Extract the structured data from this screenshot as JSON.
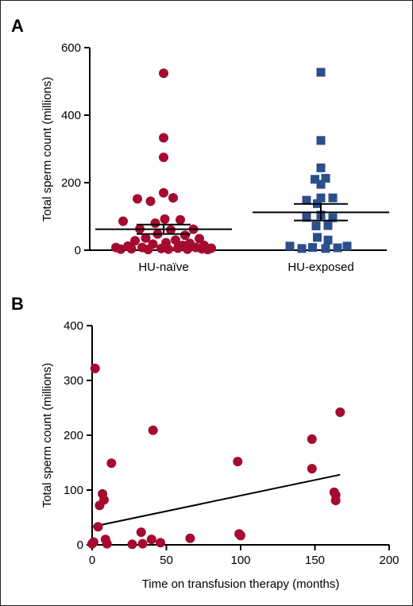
{
  "colors": {
    "hu_naive": "#a50b31",
    "hu_exposed": "#2b4e8c",
    "axis": "#000000",
    "panel_b_points": "#a50b31"
  },
  "chart_data": [
    {
      "panel": "A",
      "type": "scatter",
      "subtype": "dot-plot-with-mean-sem",
      "ylabel": "Total sperm count (millions)",
      "ylim": [
        0,
        600
      ],
      "yticks": [
        "0",
        "200",
        "400",
        "600"
      ],
      "categories": [
        "HU-naïve",
        "HU-exposed"
      ],
      "series": [
        {
          "category": "HU-naïve",
          "marker": "circle",
          "mean": 62,
          "sem_upper": 76,
          "sem_lower": 48,
          "points": [
            {
              "x": -0.4,
              "y": 8
            },
            {
              "x": -0.36,
              "y": 3
            },
            {
              "x": -0.34,
              "y": 86
            },
            {
              "x": -0.3,
              "y": 12
            },
            {
              "x": -0.27,
              "y": 4
            },
            {
              "x": -0.24,
              "y": 28
            },
            {
              "x": -0.22,
              "y": 152
            },
            {
              "x": -0.2,
              "y": 63
            },
            {
              "x": -0.18,
              "y": 8
            },
            {
              "x": -0.15,
              "y": 36
            },
            {
              "x": -0.13,
              "y": 2
            },
            {
              "x": -0.11,
              "y": 145
            },
            {
              "x": -0.09,
              "y": 18
            },
            {
              "x": -0.07,
              "y": 80
            },
            {
              "x": -0.05,
              "y": 48
            },
            {
              "x": -0.02,
              "y": 5
            },
            {
              "x": 0.0,
              "y": 524
            },
            {
              "x": 0.0,
              "y": 333
            },
            {
              "x": 0.0,
              "y": 275
            },
            {
              "x": 0.0,
              "y": 170
            },
            {
              "x": 0.01,
              "y": 92
            },
            {
              "x": 0.02,
              "y": 22
            },
            {
              "x": 0.04,
              "y": 3
            },
            {
              "x": 0.06,
              "y": 60
            },
            {
              "x": 0.08,
              "y": 155
            },
            {
              "x": 0.1,
              "y": 30
            },
            {
              "x": 0.12,
              "y": 6
            },
            {
              "x": 0.14,
              "y": 90
            },
            {
              "x": 0.16,
              "y": 14
            },
            {
              "x": 0.18,
              "y": 44
            },
            {
              "x": 0.2,
              "y": 3
            },
            {
              "x": 0.22,
              "y": 20
            },
            {
              "x": 0.25,
              "y": 62
            },
            {
              "x": 0.27,
              "y": 8
            },
            {
              "x": 0.3,
              "y": 34
            },
            {
              "x": 0.32,
              "y": 4
            },
            {
              "x": 0.34,
              "y": 14
            },
            {
              "x": 0.37,
              "y": 2
            },
            {
              "x": 0.4,
              "y": 6
            }
          ]
        },
        {
          "category": "HU-exposed",
          "marker": "square",
          "mean": 112,
          "sem_upper": 137,
          "sem_lower": 88,
          "points": [
            {
              "x": 0.0,
              "y": 527
            },
            {
              "x": 0.0,
              "y": 325
            },
            {
              "x": 0.0,
              "y": 244
            },
            {
              "x": -0.05,
              "y": 210
            },
            {
              "x": 0.04,
              "y": 213
            },
            {
              "x": 0.0,
              "y": 195
            },
            {
              "x": -0.12,
              "y": 148
            },
            {
              "x": 0.0,
              "y": 155
            },
            {
              "x": 0.1,
              "y": 155
            },
            {
              "x": -0.03,
              "y": 138
            },
            {
              "x": -0.12,
              "y": 97
            },
            {
              "x": 0.0,
              "y": 104
            },
            {
              "x": 0.1,
              "y": 96
            },
            {
              "x": -0.04,
              "y": 72
            },
            {
              "x": 0.06,
              "y": 73
            },
            {
              "x": -0.03,
              "y": 38
            },
            {
              "x": 0.06,
              "y": 30
            },
            {
              "x": -0.26,
              "y": 12
            },
            {
              "x": -0.16,
              "y": 5
            },
            {
              "x": -0.07,
              "y": 8
            },
            {
              "x": 0.04,
              "y": 5
            },
            {
              "x": 0.14,
              "y": 7
            },
            {
              "x": 0.22,
              "y": 12
            }
          ]
        }
      ]
    },
    {
      "panel": "B",
      "type": "scatter",
      "xlabel": "Time on transfusion therapy (months)",
      "ylabel": "Total sperm count (millions)",
      "xlim": [
        0,
        200
      ],
      "ylim": [
        0,
        400
      ],
      "xticks": [
        "0",
        "50",
        "100",
        "150",
        "200"
      ],
      "yticks": [
        "0",
        "100",
        "200",
        "300",
        "400"
      ],
      "points": [
        {
          "x": 0,
          "y": 2
        },
        {
          "x": 1,
          "y": 5
        },
        {
          "x": 2,
          "y": 322
        },
        {
          "x": 4,
          "y": 33
        },
        {
          "x": 5,
          "y": 72
        },
        {
          "x": 7,
          "y": 93
        },
        {
          "x": 8,
          "y": 82
        },
        {
          "x": 9,
          "y": 10
        },
        {
          "x": 10,
          "y": 2
        },
        {
          "x": 13,
          "y": 149
        },
        {
          "x": 27,
          "y": 1
        },
        {
          "x": 33,
          "y": 23
        },
        {
          "x": 34,
          "y": 2
        },
        {
          "x": 40,
          "y": 10
        },
        {
          "x": 41,
          "y": 209
        },
        {
          "x": 46,
          "y": 4
        },
        {
          "x": 66,
          "y": 12
        },
        {
          "x": 98,
          "y": 152
        },
        {
          "x": 99,
          "y": 20
        },
        {
          "x": 100,
          "y": 17
        },
        {
          "x": 148,
          "y": 193
        },
        {
          "x": 148,
          "y": 139
        },
        {
          "x": 163,
          "y": 96
        },
        {
          "x": 164,
          "y": 91
        },
        {
          "x": 164,
          "y": 81
        },
        {
          "x": 167,
          "y": 242
        }
      ],
      "trendline": {
        "x": [
          0,
          167
        ],
        "y": [
          33,
          128
        ]
      }
    }
  ]
}
